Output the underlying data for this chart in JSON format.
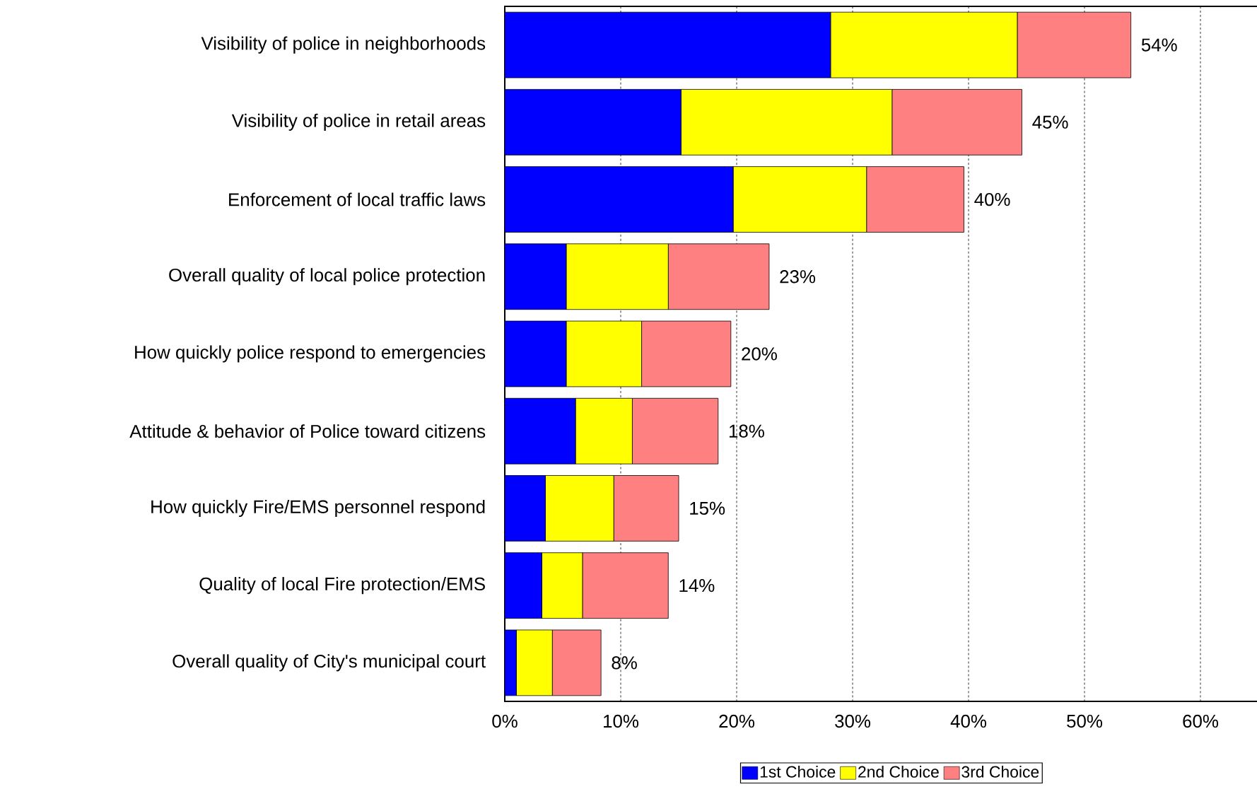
{
  "chart_data": {
    "type": "bar",
    "orientation": "horizontal",
    "stacked": true,
    "categories": [
      "Visibility of police in neighborhoods",
      "Visibility of police in retail areas",
      "Enforcement of local traffic laws",
      "Overall quality of local police protection",
      "How quickly police respond to emergencies",
      "Attitude & behavior of Police toward citizens",
      "How quickly Fire/EMS personnel respond",
      "Quality of local Fire protection/EMS",
      "Overall quality of City's municipal court"
    ],
    "series": [
      {
        "name": "1st Choice",
        "color": "#0000ff",
        "values": [
          28.1,
          15.2,
          19.7,
          5.3,
          5.3,
          6.1,
          3.5,
          3.2,
          1.0
        ]
      },
      {
        "name": "2nd Choice",
        "color": "#ffff00",
        "values": [
          16.1,
          18.2,
          11.5,
          8.8,
          6.5,
          4.9,
          5.9,
          3.5,
          3.1
        ]
      },
      {
        "name": "3rd Choice",
        "color": "#ff8080",
        "values": [
          9.8,
          11.2,
          8.4,
          8.7,
          7.7,
          7.4,
          5.6,
          7.4,
          4.2
        ]
      }
    ],
    "totals": [
      "54%",
      "45%",
      "40%",
      "23%",
      "20%",
      "18%",
      "15%",
      "14%",
      "8%"
    ],
    "xlim": [
      0,
      65
    ],
    "xticks": [
      {
        "value": 0,
        "label": "0%"
      },
      {
        "value": 10,
        "label": "10%"
      },
      {
        "value": 20,
        "label": "20%"
      },
      {
        "value": 30,
        "label": "30%"
      },
      {
        "value": 40,
        "label": "40%"
      },
      {
        "value": 50,
        "label": "50%"
      },
      {
        "value": 60,
        "label": "60%"
      }
    ],
    "grid": "x",
    "line_style": "dashed",
    "legend": "bottom"
  }
}
